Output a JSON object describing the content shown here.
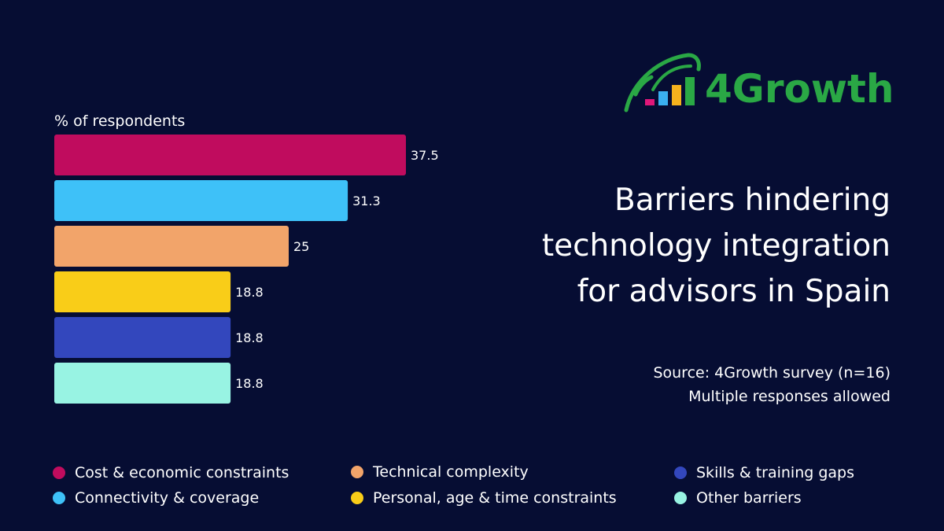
{
  "brand": {
    "name": "4Growth",
    "green": "#2aa845",
    "bar_colors": [
      "#e0177a",
      "#3ab0f0",
      "#f5b21d"
    ]
  },
  "title_lines": [
    "Barriers hindering",
    "technology integration",
    "for advisors in Spain"
  ],
  "source_lines": [
    "Source: 4Growth survey (n=16)",
    "Multiple responses allowed"
  ],
  "chart_data": {
    "type": "bar",
    "orientation": "horizontal",
    "ylabel": "% of respondents",
    "xlim": [
      0,
      40
    ],
    "categories": [
      "Cost & economic constraints",
      "Connectivity & coverage",
      "Technical complexity",
      "Personal, age & time constraints",
      "Skills & training gaps",
      "Other barriers"
    ],
    "values": [
      37.5,
      31.3,
      25,
      18.8,
      18.8,
      18.8
    ],
    "value_labels": [
      "37.5",
      "31.3",
      "25",
      "18.8",
      "18.8",
      "18.8"
    ],
    "colors": [
      "#c00c5e",
      "#3ec1f8",
      "#f2a46a",
      "#f9cd18",
      "#3347bd",
      "#98f3e3"
    ],
    "legend_placement": "bottom"
  },
  "legend": [
    {
      "label": "Cost & economic constraints",
      "color": "#c00c5e"
    },
    {
      "label": "Connectivity & coverage",
      "color": "#3ec1f8"
    },
    {
      "label": "Technical complexity",
      "color": "#f2a46a"
    },
    {
      "label": "Personal, age & time constraints",
      "color": "#f9cd18"
    },
    {
      "label": "Skills & training gaps",
      "color": "#3347bd"
    },
    {
      "label": "Other barriers",
      "color": "#98f3e3"
    }
  ]
}
